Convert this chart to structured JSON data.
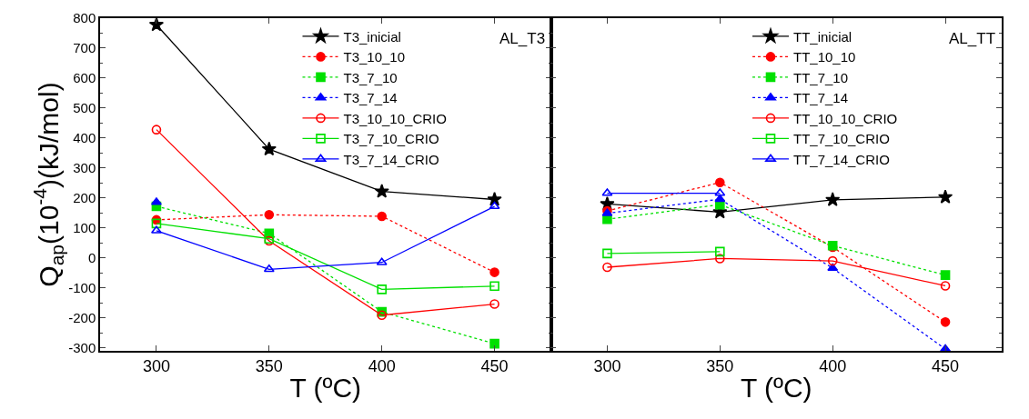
{
  "chart_data": [
    {
      "type": "line",
      "xlabel": "T (ºC)",
      "ylabel": "Q$_{ap}$(10$^{-4}$)(kJ/mol)",
      "annotations": [
        "AL_T3"
      ],
      "x": [
        300,
        350,
        400,
        450
      ],
      "xlim": [
        275,
        475
      ],
      "xticks": [
        300,
        350,
        400,
        450
      ],
      "ylim": [
        -310,
        800
      ],
      "yticks": [
        -300,
        -200,
        -100,
        0,
        100,
        200,
        300,
        400,
        500,
        600,
        700,
        800
      ],
      "legend": "top right",
      "series": [
        {
          "name": "T3_inicial",
          "color": "#000000",
          "marker": "star",
          "line_style": "solid",
          "values": [
            778,
            363,
            222,
            195
          ]
        },
        {
          "name": "T3_10_10",
          "color": "#ff0000",
          "marker": "circle",
          "line_style": "dotted",
          "values": [
            127,
            144,
            139,
            -48
          ]
        },
        {
          "name": "T3_7_10",
          "color": "#00e000",
          "marker": "square",
          "line_style": "dotted",
          "values": [
            172,
            82,
            -180,
            -286
          ]
        },
        {
          "name": "T3_7_14",
          "color": "#0000ff",
          "marker": "triangle",
          "line_style": "dotted",
          "values": [
            186,
            null,
            null,
            null
          ]
        },
        {
          "name": "T3_10_10_CRIO",
          "color": "#ff0000",
          "marker": "circle-open",
          "line_style": "solid",
          "values": [
            428,
            57,
            -191,
            -154
          ]
        },
        {
          "name": "T3_7_10_CRIO",
          "color": "#00e000",
          "marker": "square-open",
          "line_style": "solid",
          "values": [
            115,
            64,
            -105,
            -94
          ]
        },
        {
          "name": "T3_7_14_CRIO",
          "color": "#0000ff",
          "marker": "triangle-open",
          "line_style": "solid",
          "values": [
            91,
            -38,
            -15,
            172
          ]
        }
      ]
    },
    {
      "type": "line",
      "xlabel": "T (ºC)",
      "annotations": [
        "AL_TT"
      ],
      "x": [
        300,
        350,
        400,
        450
      ],
      "xlim": [
        275,
        475
      ],
      "xticks": [
        300,
        350,
        400,
        450
      ],
      "ylim": [
        -310,
        800
      ],
      "yticks": [
        -300,
        -200,
        -100,
        0,
        100,
        200,
        300,
        400,
        500,
        600,
        700,
        800
      ],
      "legend": "top right",
      "tick_labels": "x",
      "series": [
        {
          "name": "TT_inicial",
          "color": "#000000",
          "marker": "star",
          "line_style": "solid",
          "values": [
            180,
            153,
            194,
            203
          ]
        },
        {
          "name": "TT_10_10",
          "color": "#ff0000",
          "marker": "circle",
          "line_style": "dotted",
          "values": [
            157,
            252,
            36,
            -214
          ]
        },
        {
          "name": "TT_7_10",
          "color": "#00e000",
          "marker": "square",
          "line_style": "dotted",
          "values": [
            129,
            178,
            41,
            -57
          ]
        },
        {
          "name": "TT_7_14",
          "color": "#0000ff",
          "marker": "triangle",
          "line_style": "dotted",
          "values": [
            149,
            196,
            -34,
            -304
          ]
        },
        {
          "name": "TT_10_10_CRIO",
          "color": "#ff0000",
          "marker": "circle-open",
          "line_style": "solid",
          "values": [
            -31,
            -2,
            -10,
            -93
          ]
        },
        {
          "name": "TT_7_10_CRIO",
          "color": "#00e000",
          "marker": "square-open",
          "line_style": "solid",
          "values": [
            15,
            21,
            null,
            null
          ]
        },
        {
          "name": "TT_7_14_CRIO",
          "color": "#0000ff",
          "marker": "triangle-open",
          "line_style": "solid",
          "values": [
            216,
            216,
            null,
            null
          ]
        }
      ]
    }
  ]
}
